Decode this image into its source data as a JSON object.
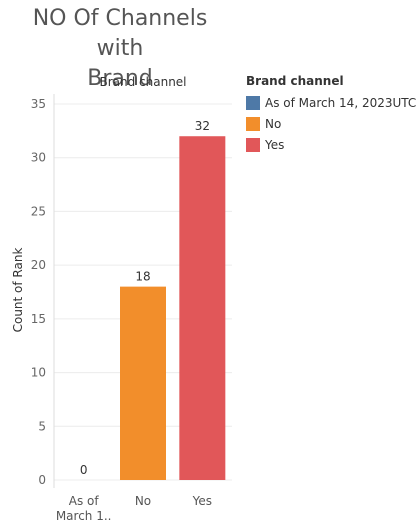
{
  "title_lines": [
    "NO Of Channels with",
    "Brand"
  ],
  "colors": {
    "background": "#ffffff",
    "grid": "#ececec",
    "axis": "#dddddd"
  },
  "chart_data": {
    "type": "bar",
    "title": "NO Of Channels with Brand",
    "header": "Brand channel",
    "categories": [
      "As of March 14, 2023UTC",
      "No",
      "Yes"
    ],
    "category_tick_labels": [
      [
        "As of",
        "March 1.."
      ],
      [
        "No"
      ],
      [
        "Yes"
      ]
    ],
    "values": [
      0,
      18,
      32
    ],
    "data_labels": [
      "0",
      "18",
      "32"
    ],
    "colors": [
      "#4e79a7",
      "#f28e2b",
      "#e15759"
    ],
    "ylabel": "Count of Rank",
    "xlabel": "",
    "ylim": [
      0,
      35
    ],
    "yticks": [
      0,
      5,
      10,
      15,
      20,
      25,
      30,
      35
    ],
    "grid": true,
    "legend": {
      "title": "Brand channel",
      "placement": "right",
      "items": [
        {
          "label": "As of March 14, 2023UTC",
          "color": "#4e79a7"
        },
        {
          "label": "No",
          "color": "#f28e2b"
        },
        {
          "label": "Yes",
          "color": "#e15759"
        }
      ]
    }
  }
}
